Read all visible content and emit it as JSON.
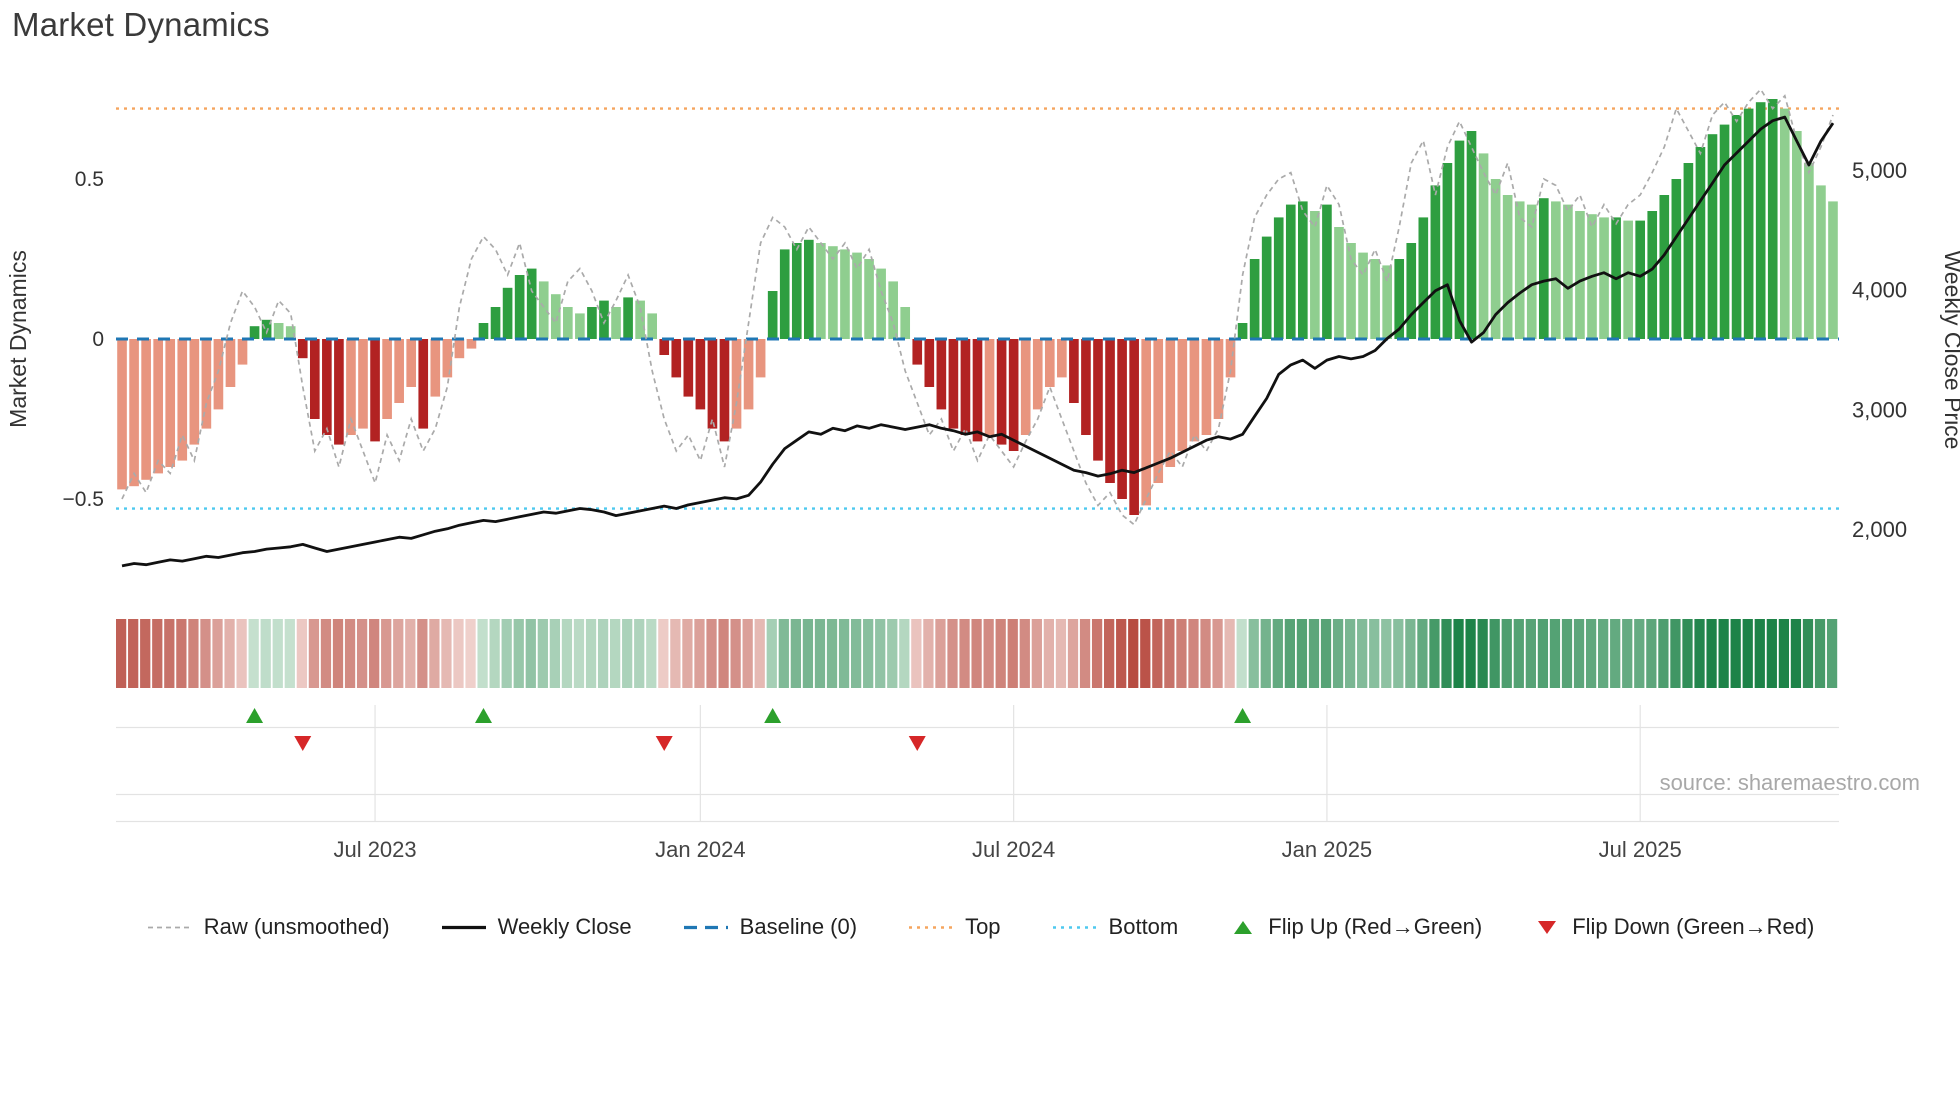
{
  "title": "Market Dynamics",
  "source": "source: sharemaestro.com",
  "colors": {
    "bar_pos_rising": "#2e9e40",
    "bar_pos_falling": "#8fce8f",
    "bar_neg_falling": "#b22222",
    "bar_neg_rising": "#e8957f",
    "price_line": "#111111",
    "raw_line": "#aaaaaa",
    "baseline": "#1f77b4",
    "top_line": "#f5a55f",
    "bottom_line": "#4ec9ef",
    "flip_up": "#2ca02c",
    "flip_down": "#d62728",
    "heat_neg": "#b03a2e",
    "heat_pos": "#1d8348"
  },
  "legend": {
    "items": [
      {
        "id": "raw",
        "label": "Raw (unsmoothed)",
        "swatch": "line",
        "color": "#aaaaaa",
        "dash": "5 4",
        "width": 1.8
      },
      {
        "id": "weekly-close",
        "label": "Weekly Close",
        "swatch": "line",
        "color": "#111111",
        "dash": "",
        "width": 3.2
      },
      {
        "id": "baseline",
        "label": "Baseline (0)",
        "swatch": "line",
        "color": "#1f77b4",
        "dash": "13 8",
        "width": 3.2
      },
      {
        "id": "top",
        "label": "Top",
        "swatch": "line",
        "color": "#f5a55f",
        "dash": "3 5",
        "width": 2.6
      },
      {
        "id": "bottom",
        "label": "Bottom",
        "swatch": "line",
        "color": "#4ec9ef",
        "dash": "3 5",
        "width": 2.6
      },
      {
        "id": "flip-up",
        "label": "Flip Up (Red→Green)",
        "swatch": "triangle-up",
        "color": "#2ca02c"
      },
      {
        "id": "flip-down",
        "label": "Flip Down (Green→Red)",
        "swatch": "triangle-down",
        "color": "#d62728"
      }
    ]
  },
  "chart_data": {
    "type": "combo: weekly oscillator bars + heatmap strip + dual-axis price line",
    "title": "Market Dynamics",
    "x_axis": "weekly (approx Feb 2023 – Oct 2025, 143 weeks)",
    "ylabel_left": "Market Dynamics",
    "ylabel_right": "Weekly Close Price",
    "ylim_left": [
      -0.75,
      0.82
    ],
    "ylim_right": [
      1620,
      5790
    ],
    "y_ticks_left": [
      {
        "v": 0.5,
        "label": "0.5"
      },
      {
        "v": 0,
        "label": "0"
      },
      {
        "v": -0.5,
        "label": "−0.5"
      }
    ],
    "y_ticks_right": [
      {
        "v": 5000,
        "label": "5,000"
      },
      {
        "v": 4000,
        "label": "4,000"
      },
      {
        "v": 3000,
        "label": "3,000"
      },
      {
        "v": 2000,
        "label": "2,000"
      }
    ],
    "x_ticks": [
      {
        "index": 21,
        "label": "Jul 2023"
      },
      {
        "index": 48,
        "label": "Jan 2024"
      },
      {
        "index": 74,
        "label": "Jul 2024"
      },
      {
        "index": 100,
        "label": "Jan 2025"
      },
      {
        "index": 126,
        "label": "Jul 2025"
      }
    ],
    "reference_lines": {
      "baseline": 0,
      "top": 0.72,
      "bottom": -0.53
    },
    "flip_up_indices": [
      11,
      30,
      54,
      93
    ],
    "flip_down_indices": [
      15,
      45,
      66
    ],
    "heatmap": "strip of weekly cells colored by oscillator value (red negative → green positive)",
    "series": [
      {
        "name": "Market Dynamics (smoothed bars)",
        "type": "bar",
        "axis": "left",
        "values": [
          -0.47,
          -0.46,
          -0.44,
          -0.42,
          -0.4,
          -0.38,
          -0.33,
          -0.28,
          -0.22,
          -0.15,
          -0.08,
          0.04,
          0.06,
          0.05,
          0.04,
          -0.06,
          -0.25,
          -0.3,
          -0.33,
          -0.3,
          -0.28,
          -0.32,
          -0.25,
          -0.2,
          -0.15,
          -0.28,
          -0.18,
          -0.12,
          -0.06,
          -0.03,
          0.05,
          0.1,
          0.16,
          0.2,
          0.22,
          0.18,
          0.14,
          0.1,
          0.08,
          0.1,
          0.12,
          0.1,
          0.13,
          0.12,
          0.08,
          -0.05,
          -0.12,
          -0.18,
          -0.22,
          -0.28,
          -0.32,
          -0.28,
          -0.22,
          -0.12,
          0.15,
          0.28,
          0.3,
          0.31,
          0.3,
          0.29,
          0.28,
          0.27,
          0.25,
          0.22,
          0.18,
          0.1,
          -0.08,
          -0.15,
          -0.22,
          -0.28,
          -0.3,
          -0.32,
          -0.3,
          -0.33,
          -0.35,
          -0.3,
          -0.22,
          -0.15,
          -0.12,
          -0.2,
          -0.3,
          -0.38,
          -0.45,
          -0.5,
          -0.55,
          -0.52,
          -0.45,
          -0.4,
          -0.35,
          -0.32,
          -0.3,
          -0.25,
          -0.12,
          0.05,
          0.25,
          0.32,
          0.38,
          0.42,
          0.43,
          0.4,
          0.42,
          0.35,
          0.3,
          0.27,
          0.25,
          0.23,
          0.25,
          0.3,
          0.38,
          0.48,
          0.55,
          0.62,
          0.65,
          0.58,
          0.5,
          0.45,
          0.43,
          0.42,
          0.44,
          0.43,
          0.42,
          0.4,
          0.39,
          0.38,
          0.38,
          0.37,
          0.37,
          0.4,
          0.45,
          0.5,
          0.55,
          0.6,
          0.64,
          0.67,
          0.7,
          0.72,
          0.74,
          0.75,
          0.72,
          0.65,
          0.55,
          0.48,
          0.43
        ]
      },
      {
        "name": "Raw (unsmoothed)",
        "type": "line",
        "axis": "left",
        "values": [
          -0.5,
          -0.42,
          -0.48,
          -0.38,
          -0.42,
          -0.3,
          -0.38,
          -0.2,
          -0.1,
          0.05,
          0.15,
          0.1,
          0.02,
          0.12,
          0.08,
          -0.15,
          -0.35,
          -0.28,
          -0.4,
          -0.25,
          -0.35,
          -0.45,
          -0.3,
          -0.38,
          -0.25,
          -0.35,
          -0.28,
          -0.15,
          0.1,
          0.25,
          0.32,
          0.28,
          0.2,
          0.3,
          0.15,
          0.1,
          0.05,
          0.18,
          0.22,
          0.15,
          0.05,
          0.12,
          0.2,
          0.1,
          -0.1,
          -0.25,
          -0.35,
          -0.3,
          -0.38,
          -0.25,
          -0.4,
          -0.2,
          0.05,
          0.3,
          0.38,
          0.35,
          0.28,
          0.35,
          0.3,
          0.25,
          0.3,
          0.22,
          0.28,
          0.15,
          0.05,
          -0.1,
          -0.2,
          -0.3,
          -0.25,
          -0.35,
          -0.28,
          -0.38,
          -0.3,
          -0.35,
          -0.4,
          -0.32,
          -0.25,
          -0.15,
          -0.25,
          -0.35,
          -0.45,
          -0.52,
          -0.48,
          -0.55,
          -0.58,
          -0.5,
          -0.42,
          -0.35,
          -0.4,
          -0.3,
          -0.35,
          -0.28,
          -0.1,
          0.2,
          0.38,
          0.45,
          0.5,
          0.52,
          0.4,
          0.35,
          0.48,
          0.42,
          0.25,
          0.2,
          0.28,
          0.18,
          0.35,
          0.55,
          0.62,
          0.45,
          0.6,
          0.68,
          0.6,
          0.52,
          0.45,
          0.55,
          0.38,
          0.35,
          0.5,
          0.48,
          0.4,
          0.45,
          0.35,
          0.42,
          0.36,
          0.42,
          0.45,
          0.52,
          0.6,
          0.72,
          0.65,
          0.58,
          0.7,
          0.74,
          0.68,
          0.74,
          0.78,
          0.72,
          0.76,
          0.62,
          0.52,
          0.6,
          0.7
        ]
      },
      {
        "name": "Weekly Close",
        "type": "line",
        "axis": "right",
        "values": [
          1700,
          1720,
          1710,
          1730,
          1750,
          1740,
          1760,
          1780,
          1770,
          1790,
          1810,
          1820,
          1840,
          1850,
          1860,
          1880,
          1850,
          1820,
          1840,
          1860,
          1880,
          1900,
          1920,
          1940,
          1930,
          1960,
          1990,
          2010,
          2040,
          2060,
          2080,
          2070,
          2090,
          2110,
          2130,
          2150,
          2140,
          2160,
          2180,
          2170,
          2150,
          2120,
          2140,
          2160,
          2180,
          2200,
          2180,
          2210,
          2230,
          2250,
          2270,
          2260,
          2290,
          2400,
          2550,
          2680,
          2750,
          2820,
          2800,
          2850,
          2830,
          2870,
          2850,
          2880,
          2860,
          2840,
          2860,
          2880,
          2850,
          2830,
          2800,
          2820,
          2780,
          2800,
          2750,
          2700,
          2650,
          2600,
          2550,
          2500,
          2480,
          2450,
          2470,
          2500,
          2480,
          2520,
          2560,
          2600,
          2650,
          2700,
          2750,
          2780,
          2760,
          2800,
          2950,
          3100,
          3300,
          3380,
          3420,
          3350,
          3420,
          3450,
          3430,
          3450,
          3500,
          3600,
          3680,
          3800,
          3900,
          4000,
          4050,
          3750,
          3570,
          3650,
          3800,
          3900,
          3980,
          4050,
          4080,
          4100,
          4020,
          4080,
          4120,
          4150,
          4100,
          4150,
          4120,
          4180,
          4300,
          4450,
          4600,
          4750,
          4900,
          5050,
          5150,
          5250,
          5350,
          5420,
          5450,
          5250,
          5050,
          5250,
          5400
        ]
      }
    ]
  }
}
